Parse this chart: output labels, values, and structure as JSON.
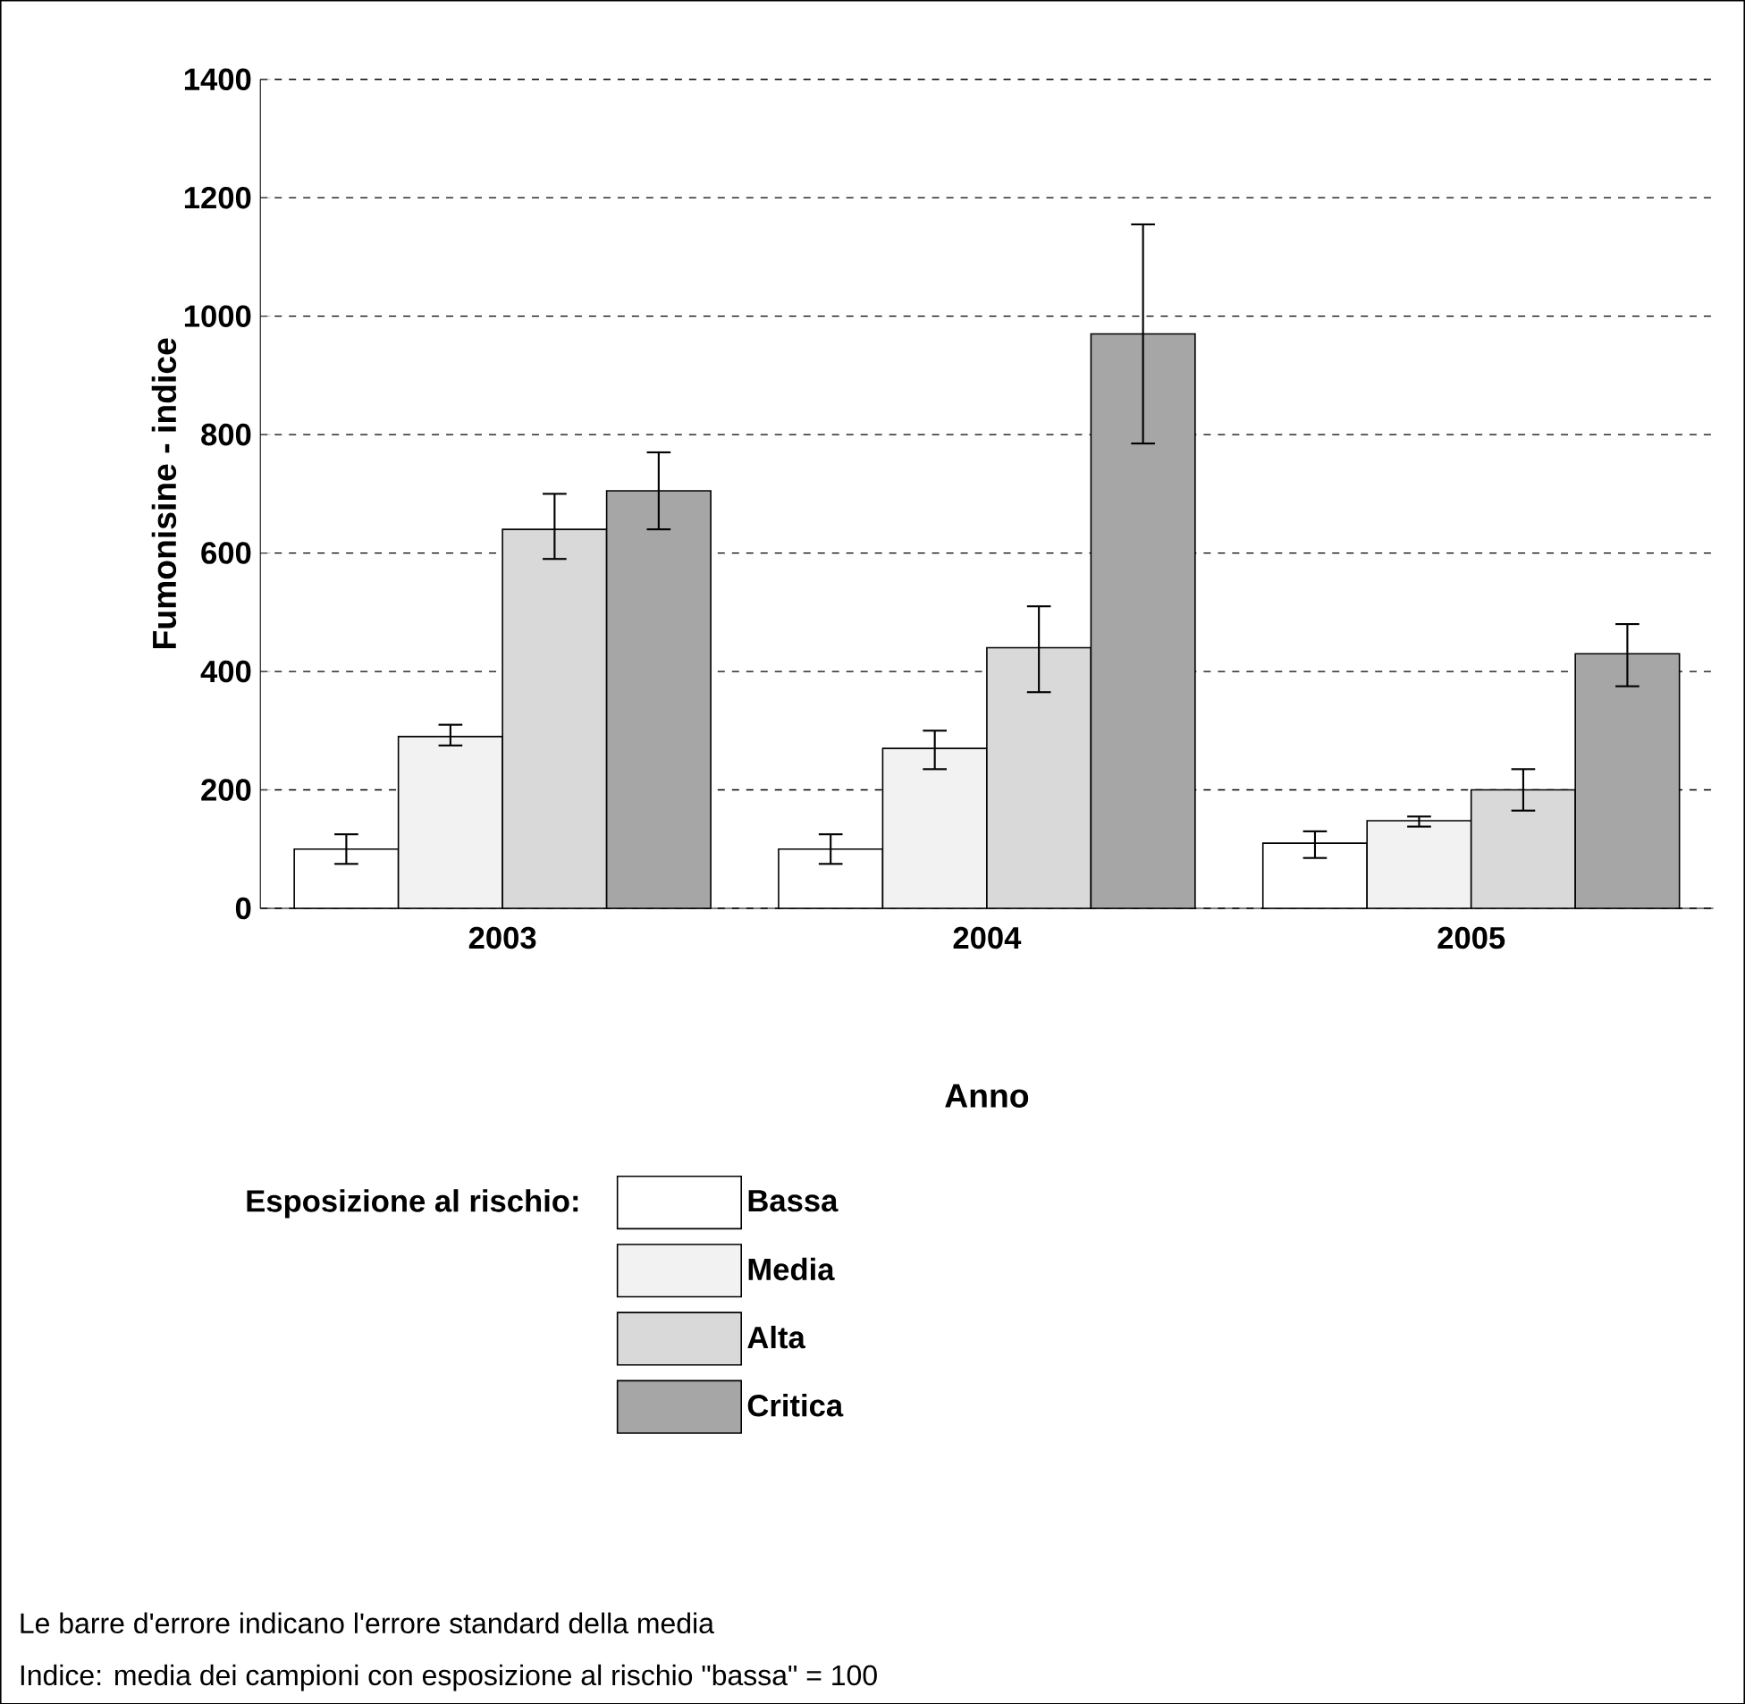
{
  "chart_data": {
    "type": "bar",
    "xlabel": "Anno",
    "ylabel": "Fumonisine - indice",
    "legend_title": "Esposizione al rischio:",
    "categories": [
      "2003",
      "2004",
      "2005"
    ],
    "series": [
      {
        "name": "Bassa",
        "color": "#ffffff",
        "values": [
          100,
          100,
          110
        ],
        "errors": [
          [
            75,
            125
          ],
          [
            75,
            125
          ],
          [
            85,
            130
          ]
        ]
      },
      {
        "name": "Media",
        "color": "#f2f2f2",
        "values": [
          290,
          270,
          148
        ],
        "errors": [
          [
            275,
            310
          ],
          [
            235,
            300
          ],
          [
            138,
            155
          ]
        ]
      },
      {
        "name": "Alta",
        "color": "#d9d9d9",
        "values": [
          640,
          440,
          200
        ],
        "errors": [
          [
            590,
            700
          ],
          [
            365,
            510
          ],
          [
            165,
            235
          ]
        ]
      },
      {
        "name": "Critica",
        "color": "#a6a6a6",
        "values": [
          705,
          970,
          430
        ],
        "errors": [
          [
            640,
            770
          ],
          [
            785,
            1155
          ],
          [
            375,
            480
          ]
        ]
      }
    ],
    "ylim": [
      0,
      1400
    ],
    "yticks": [
      0,
      200,
      400,
      600,
      800,
      1000,
      1200,
      1400
    ],
    "grid": "y",
    "legend": "bottom",
    "annotations": [
      "Le barre d'errore indicano l'errore standard della media",
      "Indice: media dei campioni con esposizione al rischio \"bassa\" = 100"
    ]
  }
}
